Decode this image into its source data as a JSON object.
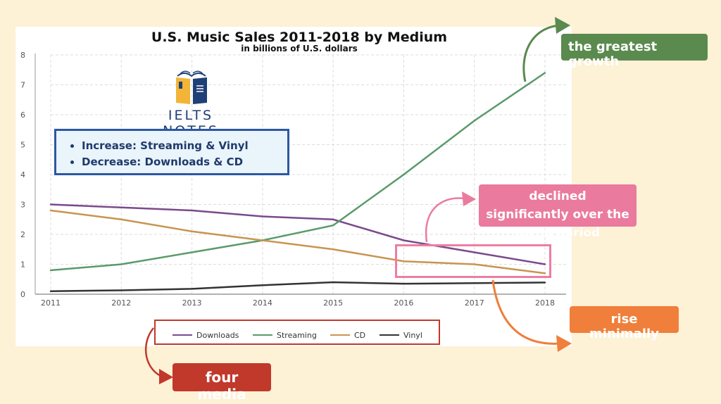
{
  "chart_data": {
    "type": "line",
    "title": "U.S. Music Sales 2011-2018 by Medium",
    "subtitle": "in billions of U.S. dollars",
    "categories": [
      "2011",
      "2012",
      "2013",
      "2014",
      "2015",
      "2016",
      "2017",
      "2018"
    ],
    "y_ticks": [
      "0",
      "1",
      "2",
      "3",
      "4",
      "5",
      "6",
      "7",
      "8"
    ],
    "ylim": [
      0,
      8
    ],
    "grid": true,
    "legend_placement": "bottom",
    "series": [
      {
        "name": "Downloads",
        "color": "#7a4a8c",
        "values": [
          3.0,
          2.9,
          2.8,
          2.6,
          2.5,
          1.8,
          1.4,
          1.0
        ]
      },
      {
        "name": "Streaming",
        "color": "#5a9a6a",
        "values": [
          0.8,
          1.0,
          1.4,
          1.8,
          2.3,
          4.0,
          5.8,
          7.4
        ]
      },
      {
        "name": "CD",
        "color": "#c79550",
        "values": [
          2.8,
          2.5,
          2.1,
          1.8,
          1.5,
          1.1,
          1.0,
          0.7
        ]
      },
      {
        "name": "Vinyl",
        "color": "#333333",
        "values": [
          0.1,
          0.13,
          0.18,
          0.3,
          0.4,
          0.35,
          0.37,
          0.39
        ]
      }
    ]
  },
  "logo": {
    "text": "IELTS NOTES"
  },
  "info": {
    "items": [
      "Increase: Streaming & Vinyl",
      "Decrease: Downloads & CD"
    ]
  },
  "callouts": {
    "growth": "the greatest growth",
    "declined": "declined significantly over the given period",
    "rise": "rise minimally",
    "four": "four media"
  },
  "colors": {
    "background": "#fdf1d6",
    "growth": "#5a8a4e",
    "declined": "#ea7a9e",
    "rise": "#ef7f3a",
    "four": "#c0392b",
    "info_border": "#2c58a0"
  }
}
